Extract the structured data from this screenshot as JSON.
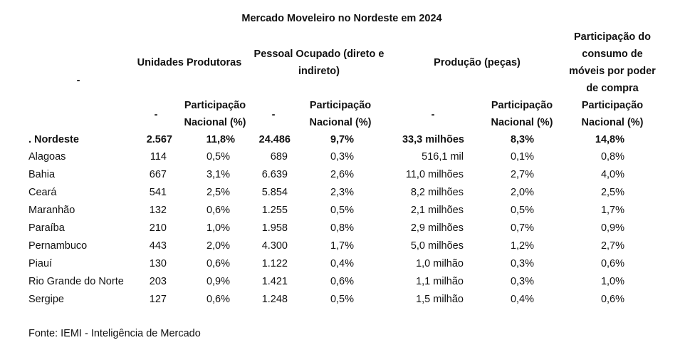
{
  "title": "Mercado Moveleiro no Nordeste em 2024",
  "header": {
    "row_label": "-",
    "group_unidades": "Unidades Produtoras",
    "group_pessoal": "Pessoal Ocupado (direto e indireto)",
    "group_producao": "Produção (peças)",
    "group_consumo": "Participação do consumo de móveis por poder de compra",
    "dash": "-",
    "participacao_nacional": "Participação Nacional (%)"
  },
  "total_row": {
    "region": ". Nordeste",
    "unidades": "2.567",
    "unidades_pct": "11,8%",
    "pessoal": "24.486",
    "pessoal_pct": "9,7%",
    "producao": "33,3 milhões",
    "producao_pct": "8,3%",
    "consumo_pct": "14,8%"
  },
  "rows": [
    {
      "region": "Alagoas",
      "unidades": "114",
      "unidades_pct": "0,5%",
      "pessoal": "689",
      "pessoal_pct": "0,3%",
      "producao": "516,1 mil",
      "producao_pct": "0,1%",
      "consumo_pct": "0,8%"
    },
    {
      "region": "Bahia",
      "unidades": "667",
      "unidades_pct": "3,1%",
      "pessoal": "6.639",
      "pessoal_pct": "2,6%",
      "producao": "11,0 milhões",
      "producao_pct": "2,7%",
      "consumo_pct": "4,0%"
    },
    {
      "region": "Ceará",
      "unidades": "541",
      "unidades_pct": "2,5%",
      "pessoal": "5.854",
      "pessoal_pct": "2,3%",
      "producao": "8,2 milhões",
      "producao_pct": "2,0%",
      "consumo_pct": "2,5%"
    },
    {
      "region": "Maranhão",
      "unidades": "132",
      "unidades_pct": "0,6%",
      "pessoal": "1.255",
      "pessoal_pct": "0,5%",
      "producao": "2,1 milhões",
      "producao_pct": "0,5%",
      "consumo_pct": "1,7%"
    },
    {
      "region": "Paraíba",
      "unidades": "210",
      "unidades_pct": "1,0%",
      "pessoal": "1.958",
      "pessoal_pct": "0,8%",
      "producao": "2,9 milhões",
      "producao_pct": "0,7%",
      "consumo_pct": "0,9%"
    },
    {
      "region": "Pernambuco",
      "unidades": "443",
      "unidades_pct": "2,0%",
      "pessoal": "4.300",
      "pessoal_pct": "1,7%",
      "producao": "5,0 milhões",
      "producao_pct": "1,2%",
      "consumo_pct": "2,7%"
    },
    {
      "region": "Piauí",
      "unidades": "130",
      "unidades_pct": "0,6%",
      "pessoal": "1.122",
      "pessoal_pct": "0,4%",
      "producao": "1,0 milhão",
      "producao_pct": "0,3%",
      "consumo_pct": "0,6%"
    },
    {
      "region": "Rio Grande do Norte",
      "unidades": "203",
      "unidades_pct": "0,9%",
      "pessoal": "1.421",
      "pessoal_pct": "0,6%",
      "producao": "1,1 milhão",
      "producao_pct": "0,3%",
      "consumo_pct": "1,0%"
    },
    {
      "region": "Sergipe",
      "unidades": "127",
      "unidades_pct": "0,6%",
      "pessoal": "1.248",
      "pessoal_pct": "0,5%",
      "producao": "1,5 milhão",
      "producao_pct": "0,4%",
      "consumo_pct": "0,6%"
    }
  ],
  "source": "Fonte: IEMI - Inteligência de Mercado"
}
